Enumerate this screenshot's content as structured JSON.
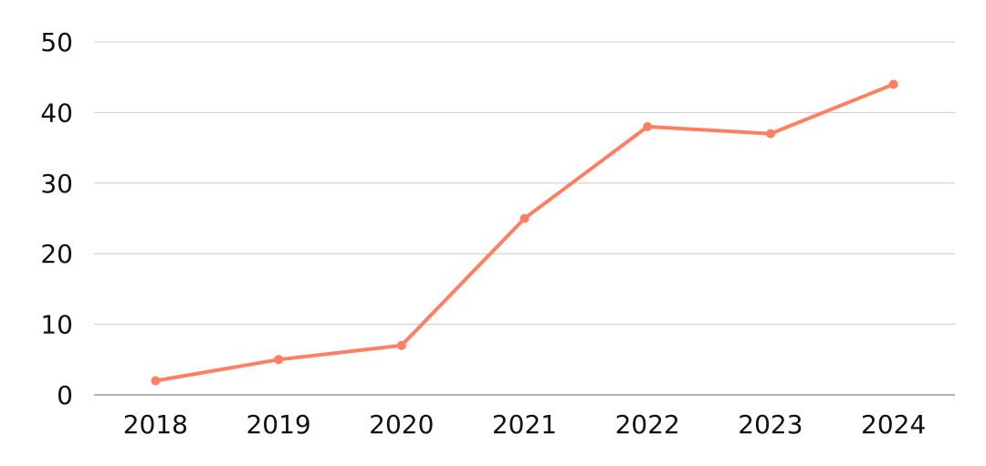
{
  "chart_data": {
    "type": "line",
    "title": "",
    "xlabel": "",
    "ylabel": "",
    "categories": [
      "2018",
      "2019",
      "2020",
      "2021",
      "2022",
      "2023",
      "2024"
    ],
    "series": [
      {
        "values": [
          2,
          5,
          7,
          25,
          38,
          37,
          44
        ],
        "color": "#FF7F62"
      }
    ],
    "ylim": [
      0,
      50
    ],
    "yticks": [
      0,
      10,
      20,
      30,
      40,
      50
    ],
    "grid": true,
    "legend": "none",
    "markers": true
  }
}
